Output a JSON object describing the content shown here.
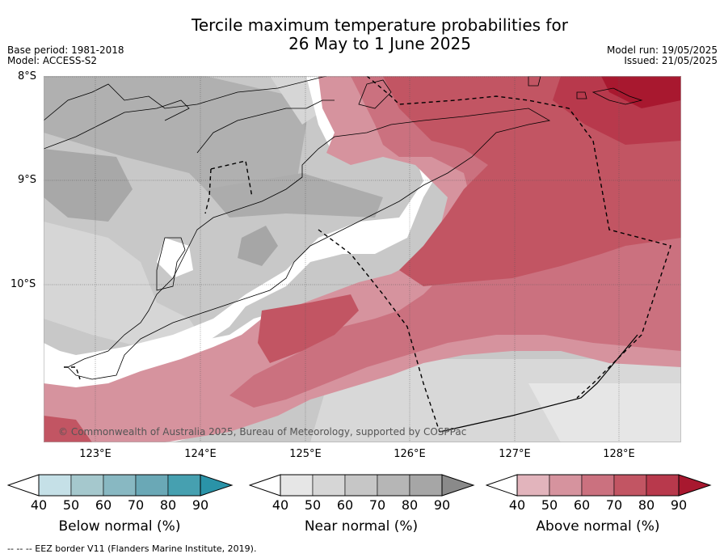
{
  "title_line1": "Tercile maximum temperature probabilities for",
  "title_line2": "26 May to 1 June 2025",
  "base_period": "Base period: 1981-2018",
  "model": "Model: ACCESS-S2",
  "model_run": "Model run: 19/05/2025",
  "issued": "Issued: 21/05/2025",
  "map": {
    "lat_labels": [
      "8°S",
      "9°S",
      "10°S"
    ],
    "lon_labels": [
      "123°E",
      "124°E",
      "125°E",
      "126°E",
      "127°E",
      "128°E"
    ],
    "lon_range": [
      122.5,
      128.6
    ],
    "lat_range": [
      -11.5,
      -8.0
    ],
    "copyright": "© Commonwealth of Australia 2025, Bureau of Meteorology, supported by COSPPac"
  },
  "legend": {
    "ticks": [
      "40",
      "50",
      "60",
      "70",
      "80",
      "90"
    ],
    "below": {
      "title": "Below normal (%)",
      "colors": [
        "#c5e0e7",
        "#a5c8cd",
        "#88b8c2",
        "#6aa8b6",
        "#46a0b0",
        "#2a93a8"
      ]
    },
    "near": {
      "title": "Near normal (%)",
      "colors": [
        "#e6e6e6",
        "#d6d6d6",
        "#c6c6c6",
        "#b6b6b6",
        "#a6a6a6",
        "#8a8a8a"
      ]
    },
    "above": {
      "title": "Above normal (%)",
      "colors": [
        "#e2b4bc",
        "#d6939e",
        "#cb717f",
        "#c25563",
        "#b8394c",
        "#a8182f"
      ]
    }
  },
  "footnote": "--  --  -- EEZ border V11 (Flanders Marine Institute, 2019)."
}
